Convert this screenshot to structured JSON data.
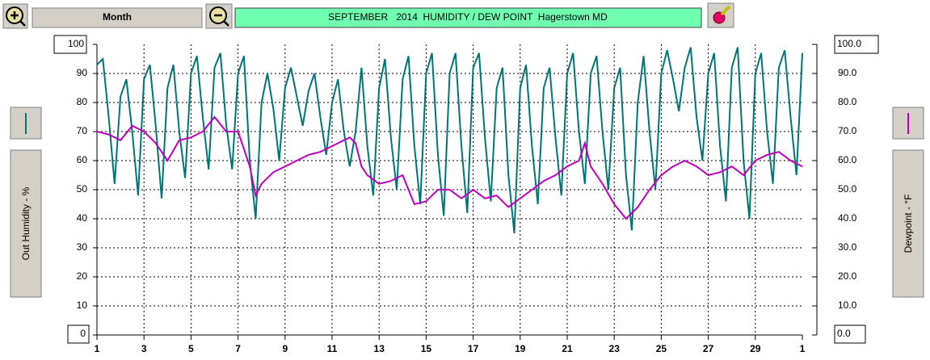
{
  "chart_data": {
    "type": "line",
    "title": "SEPTEMBER   2014  HUMIDITY / DEW POINT  Hagerstown MD",
    "period": "Month",
    "ylabel": "Out Humidity - %",
    "y2label": "Dewpoint - °F",
    "xlim": [
      1,
      31
    ],
    "xticks": [
      1,
      3,
      5,
      7,
      9,
      11,
      13,
      15,
      17,
      19,
      21,
      23,
      25,
      27,
      29,
      {
        "value": 31,
        "label": "1"
      }
    ],
    "ylim": [
      0,
      100
    ],
    "yticks": [
      0,
      10,
      20,
      30,
      40,
      50,
      60,
      70,
      80,
      90,
      100
    ],
    "y2lim": [
      0,
      100
    ],
    "y2ticks": [
      {
        "value": 0,
        "label": "0.0"
      },
      {
        "value": 10,
        "label": "10.0"
      },
      {
        "value": 20,
        "label": "20.0"
      },
      {
        "value": 30,
        "label": "30.0"
      },
      {
        "value": 40,
        "label": "40.0"
      },
      {
        "value": 50,
        "label": "50.0"
      },
      {
        "value": 60,
        "label": "60.0"
      },
      {
        "value": 70,
        "label": "70.0"
      },
      {
        "value": 80,
        "label": "80.0"
      },
      {
        "value": 90,
        "label": "90.0"
      },
      {
        "value": 100,
        "label": "100.0"
      }
    ],
    "grid": true,
    "x": [
      1,
      1.25,
      1.5,
      1.75,
      2,
      2.25,
      2.5,
      2.75,
      3,
      3.25,
      3.5,
      3.75,
      4,
      4.25,
      4.5,
      4.75,
      5,
      5.25,
      5.5,
      5.75,
      6,
      6.25,
      6.5,
      6.75,
      7,
      7.25,
      7.5,
      7.75,
      8,
      8.25,
      8.5,
      8.75,
      9,
      9.25,
      9.5,
      9.75,
      10,
      10.25,
      10.5,
      10.75,
      11,
      11.25,
      11.5,
      11.75,
      12,
      12.25,
      12.5,
      12.75,
      13,
      13.25,
      13.5,
      13.75,
      14,
      14.25,
      14.5,
      14.75,
      15,
      15.25,
      15.5,
      15.75,
      16,
      16.25,
      16.5,
      16.75,
      17,
      17.25,
      17.5,
      17.75,
      18,
      18.25,
      18.5,
      18.75,
      19,
      19.25,
      19.5,
      19.75,
      20,
      20.25,
      20.5,
      20.75,
      21,
      21.25,
      21.5,
      21.75,
      22,
      22.25,
      22.5,
      22.75,
      23,
      23.25,
      23.5,
      23.75,
      24,
      24.25,
      24.5,
      24.75,
      25,
      25.25,
      25.5,
      25.75,
      26,
      26.25,
      26.5,
      26.75,
      27,
      27.25,
      27.5,
      27.75,
      28,
      28.25,
      28.5,
      28.75,
      29,
      29.25,
      29.5,
      29.75,
      30,
      30.25,
      30.5,
      30.75,
      31
    ],
    "series": [
      {
        "name": "Out Humidity",
        "color": "#007575",
        "axis": "y",
        "values": [
          93,
          95,
          75,
          52,
          82,
          88,
          70,
          48,
          88,
          93,
          72,
          47,
          85,
          93,
          70,
          54,
          90,
          96,
          75,
          57,
          92,
          97,
          72,
          57,
          90,
          96,
          60,
          40,
          80,
          90,
          78,
          60,
          85,
          92,
          82,
          72,
          84,
          90,
          75,
          62,
          80,
          88,
          70,
          58,
          70,
          92,
          65,
          48,
          85,
          95,
          68,
          50,
          88,
          96,
          65,
          45,
          90,
          97,
          62,
          41,
          90,
          97,
          65,
          42,
          92,
          97,
          68,
          46,
          85,
          92,
          55,
          35,
          85,
          93,
          65,
          45,
          85,
          92,
          68,
          48,
          90,
          97,
          70,
          52,
          90,
          96,
          70,
          50,
          85,
          92,
          55,
          36,
          80,
          96,
          70,
          50,
          90,
          98,
          88,
          77,
          92,
          99,
          75,
          60,
          90,
          97,
          65,
          46,
          92,
          99,
          60,
          40,
          90,
          97,
          70,
          52,
          92,
          98,
          75,
          55,
          97
        ]
      },
      {
        "name": "Dewpoint",
        "color": "#c000c0",
        "axis": "y2",
        "values": [
          70,
          69.5,
          69,
          68,
          67,
          69.5,
          72,
          71,
          70,
          68,
          66,
          63,
          60,
          63.5,
          67,
          67.5,
          68,
          69,
          70,
          72.5,
          75,
          72.5,
          70,
          70,
          70,
          64,
          58,
          48,
          52,
          54,
          56,
          57,
          58,
          59,
          60,
          61,
          62,
          62.5,
          63,
          64,
          65,
          66,
          67,
          68,
          66,
          58,
          55,
          53.5,
          52,
          52.5,
          53,
          54,
          55,
          50,
          45,
          45.5,
          46,
          48,
          50,
          50,
          50,
          48.5,
          47,
          48.5,
          50,
          48.5,
          47,
          47.5,
          48,
          46,
          44,
          45.5,
          47,
          48.5,
          50,
          51.5,
          53,
          54,
          55,
          56.5,
          58,
          59,
          60,
          66,
          58,
          55,
          52,
          48.5,
          45,
          42.5,
          40,
          42,
          44,
          47,
          50,
          52.5,
          55,
          56.5,
          58,
          59,
          60,
          59,
          58,
          56.5,
          55,
          55.5,
          56,
          57,
          58,
          56.5,
          55,
          57.5,
          60,
          61,
          62,
          62.5,
          63,
          61.5,
          60,
          59,
          58
        ]
      }
    ]
  }
}
